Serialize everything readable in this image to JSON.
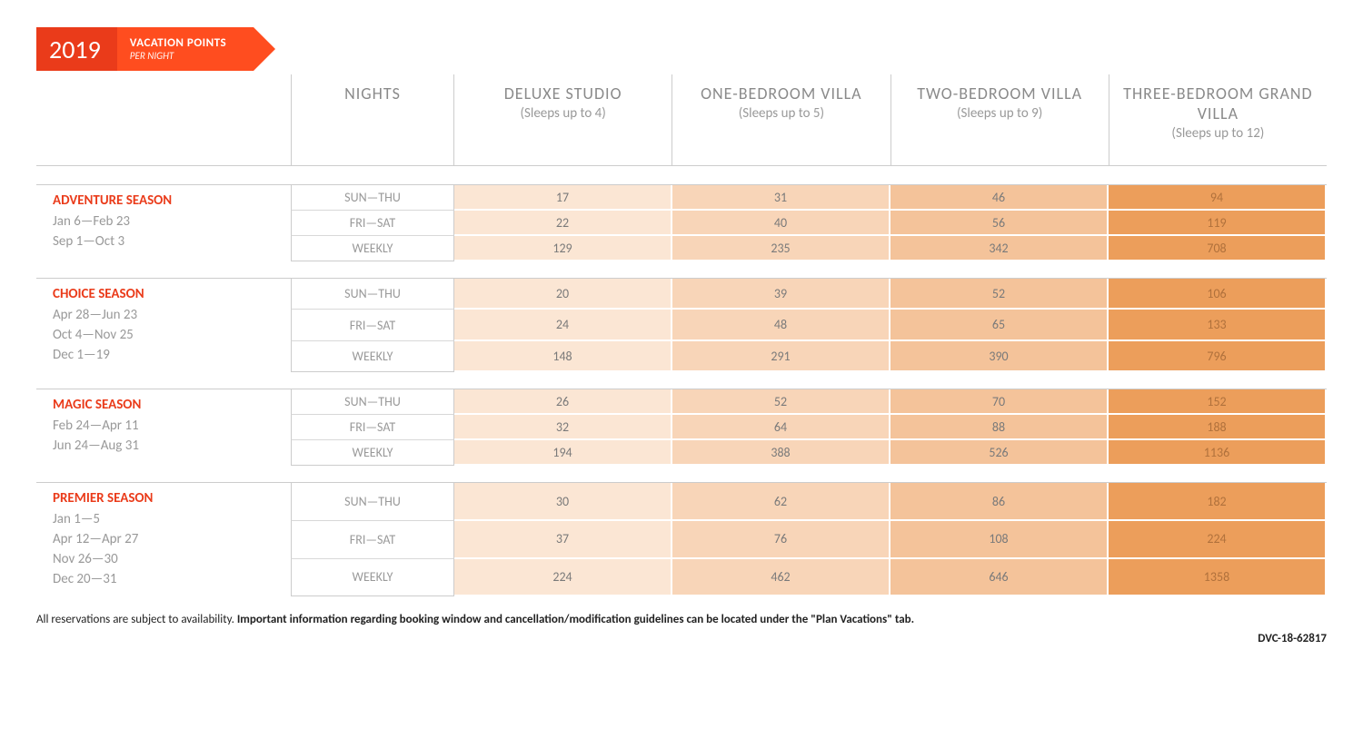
{
  "banner": {
    "year": "2019",
    "title": "VACATION POINTS",
    "subtitle": "PER NIGHT"
  },
  "columns": {
    "nights_label": "NIGHTS",
    "rooms": [
      {
        "name": "DELUXE STUDIO",
        "sleeps": "(Sleeps up to 4)"
      },
      {
        "name": "ONE-BEDROOM VILLA",
        "sleeps": "(Sleeps up to 5)"
      },
      {
        "name": "TWO-BEDROOM VILLA",
        "sleeps": "(Sleeps up to 9)"
      },
      {
        "name": "THREE-BEDROOM GRAND VILLA",
        "sleeps": "(Sleeps up to 12)"
      }
    ]
  },
  "night_labels": [
    "SUN—THU",
    "FRI—SAT",
    "WEEKLY"
  ],
  "cell_colors": [
    "#fbe6d4",
    "#f8d5b8",
    "#f4c39a",
    "#ec9e5b"
  ],
  "cell_text_colors": [
    "#7a7a7a",
    "#7a7a7a",
    "#7a7a7a",
    "#b0713c"
  ],
  "seasons": [
    {
      "name": "ADVENTURE SEASON",
      "dates": [
        "Jan 6—Feb 23",
        "Sep 1—Oct 3"
      ],
      "rows": [
        [
          17,
          31,
          46,
          94
        ],
        [
          22,
          40,
          56,
          119
        ],
        [
          129,
          235,
          342,
          708
        ]
      ]
    },
    {
      "name": "CHOICE SEASON",
      "dates": [
        "Apr 28—Jun 23",
        "Oct 4—Nov 25",
        "Dec 1—19"
      ],
      "rows": [
        [
          20,
          39,
          52,
          106
        ],
        [
          24,
          48,
          65,
          133
        ],
        [
          148,
          291,
          390,
          796
        ]
      ]
    },
    {
      "name": "MAGIC SEASON",
      "dates": [
        "Feb 24—Apr 11",
        "Jun 24—Aug 31"
      ],
      "rows": [
        [
          26,
          52,
          70,
          152
        ],
        [
          32,
          64,
          88,
          188
        ],
        [
          194,
          388,
          526,
          1136
        ]
      ]
    },
    {
      "name": "PREMIER SEASON",
      "dates": [
        "Jan 1—5",
        "Apr 12—Apr 27",
        "Nov 26—30",
        "Dec 20—31"
      ],
      "rows": [
        [
          30,
          62,
          86,
          182
        ],
        [
          37,
          76,
          108,
          224
        ],
        [
          224,
          462,
          646,
          1358
        ]
      ]
    }
  ],
  "footnote": {
    "plain": "All reservations are subject to availability. ",
    "bold": "Important information regarding booking window and cancellation/modification guidelines can be located under the \"Plan Vacations\" tab."
  },
  "doc_code": "DVC-18-62817"
}
